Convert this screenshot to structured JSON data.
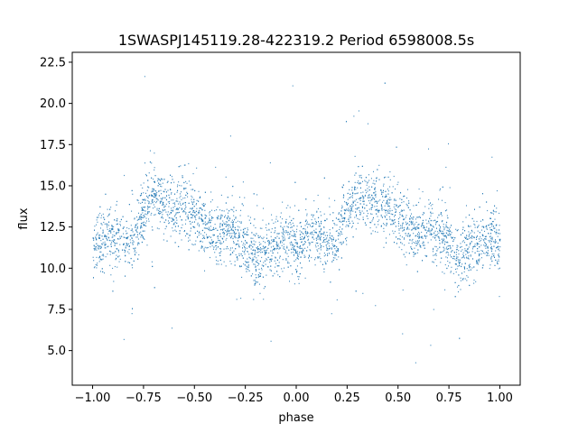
{
  "chart_data": {
    "type": "scatter",
    "title": "1SWASPJ145119.28-422319.2 Period 6598008.5s",
    "xlabel": "phase",
    "ylabel": "flux",
    "xlim": [
      -1.1,
      1.1
    ],
    "ylim": [
      2.9,
      23.1
    ],
    "xticks": [
      -1.0,
      -0.75,
      -0.5,
      -0.25,
      0.0,
      0.25,
      0.5,
      0.75,
      1.0
    ],
    "xtick_labels": [
      "−1.00",
      "−0.75",
      "−0.50",
      "−0.25",
      "0.00",
      "0.25",
      "0.50",
      "0.75",
      "1.00"
    ],
    "yticks": [
      5.0,
      7.5,
      10.0,
      12.5,
      15.0,
      17.5,
      20.0,
      22.5
    ],
    "ytick_labels": [
      "5.0",
      "7.5",
      "10.0",
      "12.5",
      "15.0",
      "17.5",
      "20.0",
      "22.5"
    ],
    "grid": false,
    "marker_color": "#1f77b4",
    "phase_range": [
      -1.0,
      1.0
    ],
    "profile": {
      "phase": [
        0.0,
        0.05,
        0.1,
        0.15,
        0.2,
        0.25,
        0.3,
        0.35,
        0.4,
        0.45,
        0.5,
        0.55,
        0.6,
        0.65,
        0.7,
        0.75,
        0.8,
        0.85,
        0.9,
        0.95,
        1.0
      ],
      "flux": [
        11.2,
        11.8,
        12.0,
        11.5,
        11.8,
        13.5,
        14.5,
        14.0,
        13.8,
        14.0,
        13.2,
        12.5,
        12.0,
        12.5,
        12.0,
        11.5,
        10.8,
        11.0,
        11.5,
        11.8,
        11.6
      ]
    }
  }
}
